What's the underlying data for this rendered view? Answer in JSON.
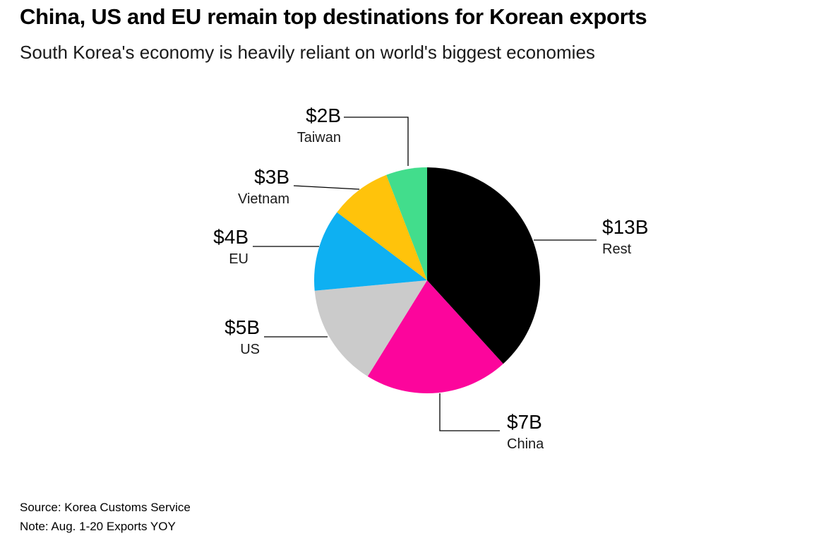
{
  "header": {
    "title": "China, US and EU remain top destinations for Korean exports",
    "subtitle": "South Korea's economy is heavily reliant on world's biggest economies"
  },
  "chart_data": {
    "type": "pie",
    "title": "China, US and EU remain top destinations for Korean exports",
    "subtitle": "South Korea's economy is heavily reliant on world's biggest economies",
    "unit": "billion USD",
    "start_angle": "top",
    "direction": "clockwise",
    "total": 34,
    "slices": [
      {
        "label": "Rest",
        "value": 13,
        "value_label": "$13B",
        "color": "#000000"
      },
      {
        "label": "China",
        "value": 7,
        "value_label": "$7B",
        "color": "#fc059c"
      },
      {
        "label": "US",
        "value": 5,
        "value_label": "$5B",
        "color": "#cbcbcb"
      },
      {
        "label": "EU",
        "value": 4,
        "value_label": "$4B",
        "color": "#0eb0f2"
      },
      {
        "label": "Vietnam",
        "value": 3,
        "value_label": "$3B",
        "color": "#ffc30b"
      },
      {
        "label": "Taiwan",
        "value": 2,
        "value_label": "$2B",
        "color": "#42dd8c"
      }
    ],
    "legend_position": "none",
    "labels": "callout-lines"
  },
  "footer": {
    "source": "Source: Korea Customs Service",
    "note": "Note: Aug. 1-20 Exports YOY"
  }
}
